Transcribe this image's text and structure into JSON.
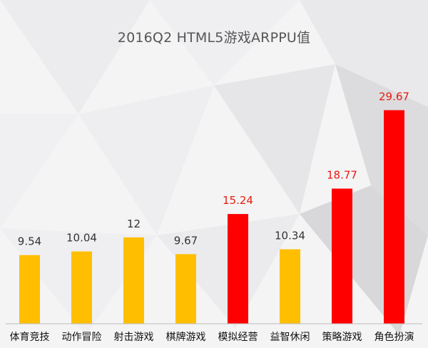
{
  "chart_data": {
    "type": "bar",
    "title": "2016Q2 HTML5游戏ARPPU值",
    "categories": [
      "体育竞技",
      "动作冒险",
      "射击游戏",
      "棋牌游戏",
      "模拟经营",
      "益智休闲",
      "策略游戏",
      "角色扮演"
    ],
    "values": [
      9.54,
      10.04,
      12,
      9.67,
      15.24,
      10.34,
      18.77,
      29.67
    ],
    "value_labels": [
      "9.54",
      "10.04",
      "12",
      "9.67",
      "15.24",
      "10.34",
      "18.77",
      "29.67"
    ],
    "highlight": [
      false,
      false,
      false,
      false,
      true,
      false,
      true,
      true
    ],
    "ylim": [
      0,
      31.5
    ],
    "grid": false,
    "legend": "none",
    "colors": {
      "normal_bar": "#ffbf00",
      "highlight_bar": "#ff0000",
      "normal_label": "#333333",
      "highlight_label": "#e8190c",
      "title": "#555555",
      "axis": "#bdbdbd",
      "category_label": "#111111"
    }
  }
}
